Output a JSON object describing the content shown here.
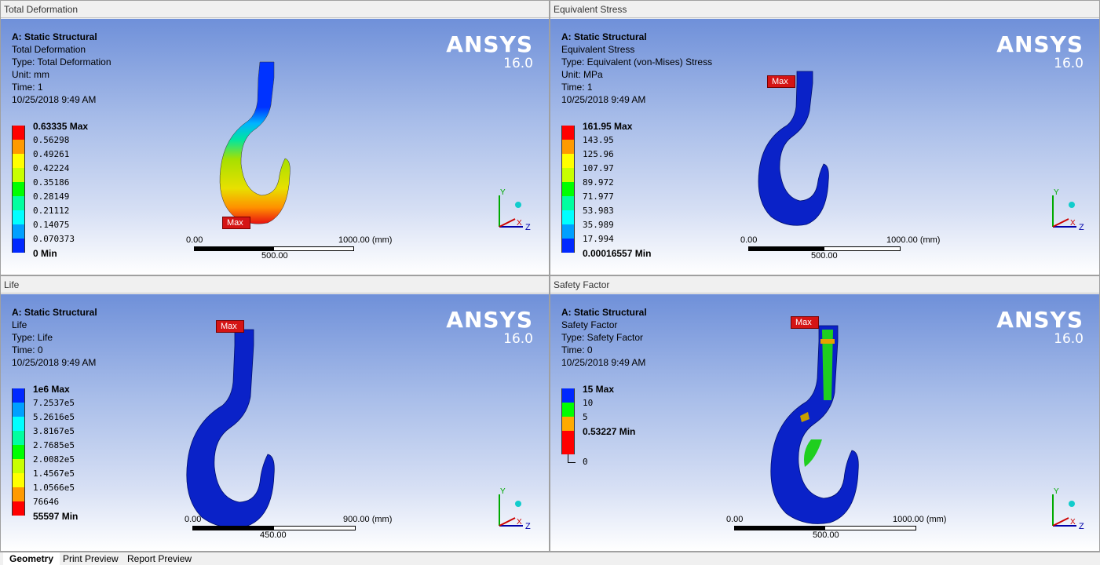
{
  "tabs": [
    {
      "label": "Geometry"
    },
    {
      "label": "Print Preview"
    },
    {
      "label": "Report Preview"
    }
  ],
  "viewports": [
    {
      "title": "Total Deformation",
      "info": [
        "A: Static Structural",
        "Total Deformation",
        "Type: Total Deformation",
        "Unit: mm",
        "Time: 1",
        "10/25/2018 9:49 AM"
      ],
      "legend": [
        "0.63335 Max",
        "0.56298",
        "0.49261",
        "0.42224",
        "0.35186",
        "0.28149",
        "0.21112",
        "0.14075",
        "0.070373",
        "0 Min"
      ],
      "legend_colors": [
        "#ff0000",
        "#ff9a00",
        "#ffff00",
        "#c8ff00",
        "#00ff00",
        "#00ffa0",
        "#00ffff",
        "#00a0ff",
        "#0028ff"
      ],
      "scale_left": "0.00",
      "scale_right": "1000.00 (mm)",
      "scale_mid": "500.00",
      "max_label": "Max"
    },
    {
      "title": "Equivalent Stress",
      "info": [
        "A: Static Structural",
        "Equivalent Stress",
        "Type: Equivalent (von-Mises) Stress",
        "Unit: MPa",
        "Time: 1",
        "10/25/2018 9:49 AM"
      ],
      "legend": [
        "161.95 Max",
        "143.95",
        "125.96",
        "107.97",
        "89.972",
        "71.977",
        "53.983",
        "35.989",
        "17.994",
        "0.00016557 Min"
      ],
      "legend_colors": [
        "#ff0000",
        "#ff9a00",
        "#ffff00",
        "#c8ff00",
        "#00ff00",
        "#00ffa0",
        "#00ffff",
        "#00a0ff",
        "#0028ff"
      ],
      "scale_left": "0.00",
      "scale_right": "1000.00 (mm)",
      "scale_mid": "500.00",
      "max_label": "Max"
    },
    {
      "title": "Life",
      "info": [
        "A: Static Structural",
        "Life",
        "Type: Life",
        "Time: 0",
        "10/25/2018 9:49 AM"
      ],
      "legend": [
        "1e6 Max",
        "7.2537e5",
        "5.2616e5",
        "3.8167e5",
        "2.7685e5",
        "2.0082e5",
        "1.4567e5",
        "1.0566e5",
        "76646",
        "55597 Min"
      ],
      "legend_colors": [
        "#0028ff",
        "#00a0ff",
        "#00ffff",
        "#00ffa0",
        "#00ff00",
        "#c8ff00",
        "#ffff00",
        "#ff9a00",
        "#ff0000"
      ],
      "scale_left": "0.00",
      "scale_right": "900.00 (mm)",
      "scale_mid": "450.00",
      "max_label": "Max"
    },
    {
      "title": "Safety Factor",
      "info": [
        "A: Static Structural",
        "Safety Factor",
        "Type: Safety Factor",
        "Time: 0",
        "10/25/2018 9:49 AM"
      ],
      "legend": [
        "15 Max",
        "10",
        "5",
        "0.53227 Min",
        "0"
      ],
      "legend_colors": [
        "#0028ff",
        "#00ff00",
        "#ffaa00",
        "#ff0000"
      ],
      "scale_left": "0.00",
      "scale_right": "1000.00 (mm)",
      "scale_mid": "500.00",
      "max_label": "Max"
    }
  ],
  "brand": "ANSYS",
  "version": "16.0",
  "triad": {
    "y": "Y",
    "z": "Z",
    "x": "X"
  }
}
